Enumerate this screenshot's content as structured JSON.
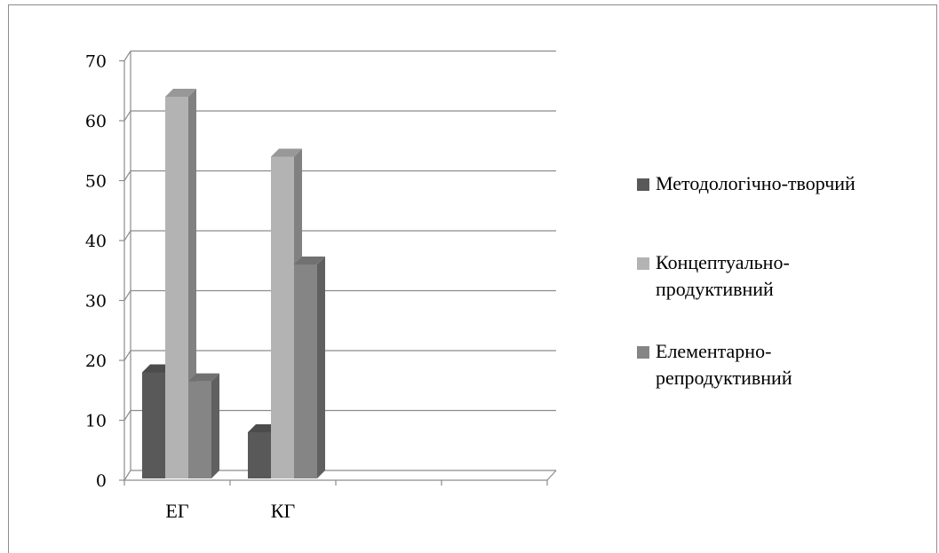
{
  "chart_data": {
    "type": "bar",
    "categories": [
      "ЕГ",
      "КГ"
    ],
    "series": [
      {
        "name": "Методологічно-творчий",
        "values": [
          18,
          8
        ],
        "color": "#595959"
      },
      {
        "name": "Концептуально-продуктивний",
        "values": [
          64,
          54
        ],
        "color": "#b3b3b3"
      },
      {
        "name": "Елементарно-репродуктивний",
        "values": [
          16.5,
          36
        ],
        "color": "#858585"
      }
    ],
    "legend_labels": [
      [
        "Методологічно-творчий"
      ],
      [
        "Концептуально-",
        "продуктивний"
      ],
      [
        "Елементарно-",
        "репродуктивний"
      ]
    ],
    "yticks": [
      "0",
      "10",
      "20",
      "30",
      "40",
      "50",
      "60",
      "70"
    ],
    "ylim": [
      0,
      70
    ],
    "grid": true,
    "legend_position": "right",
    "style": "3d"
  }
}
